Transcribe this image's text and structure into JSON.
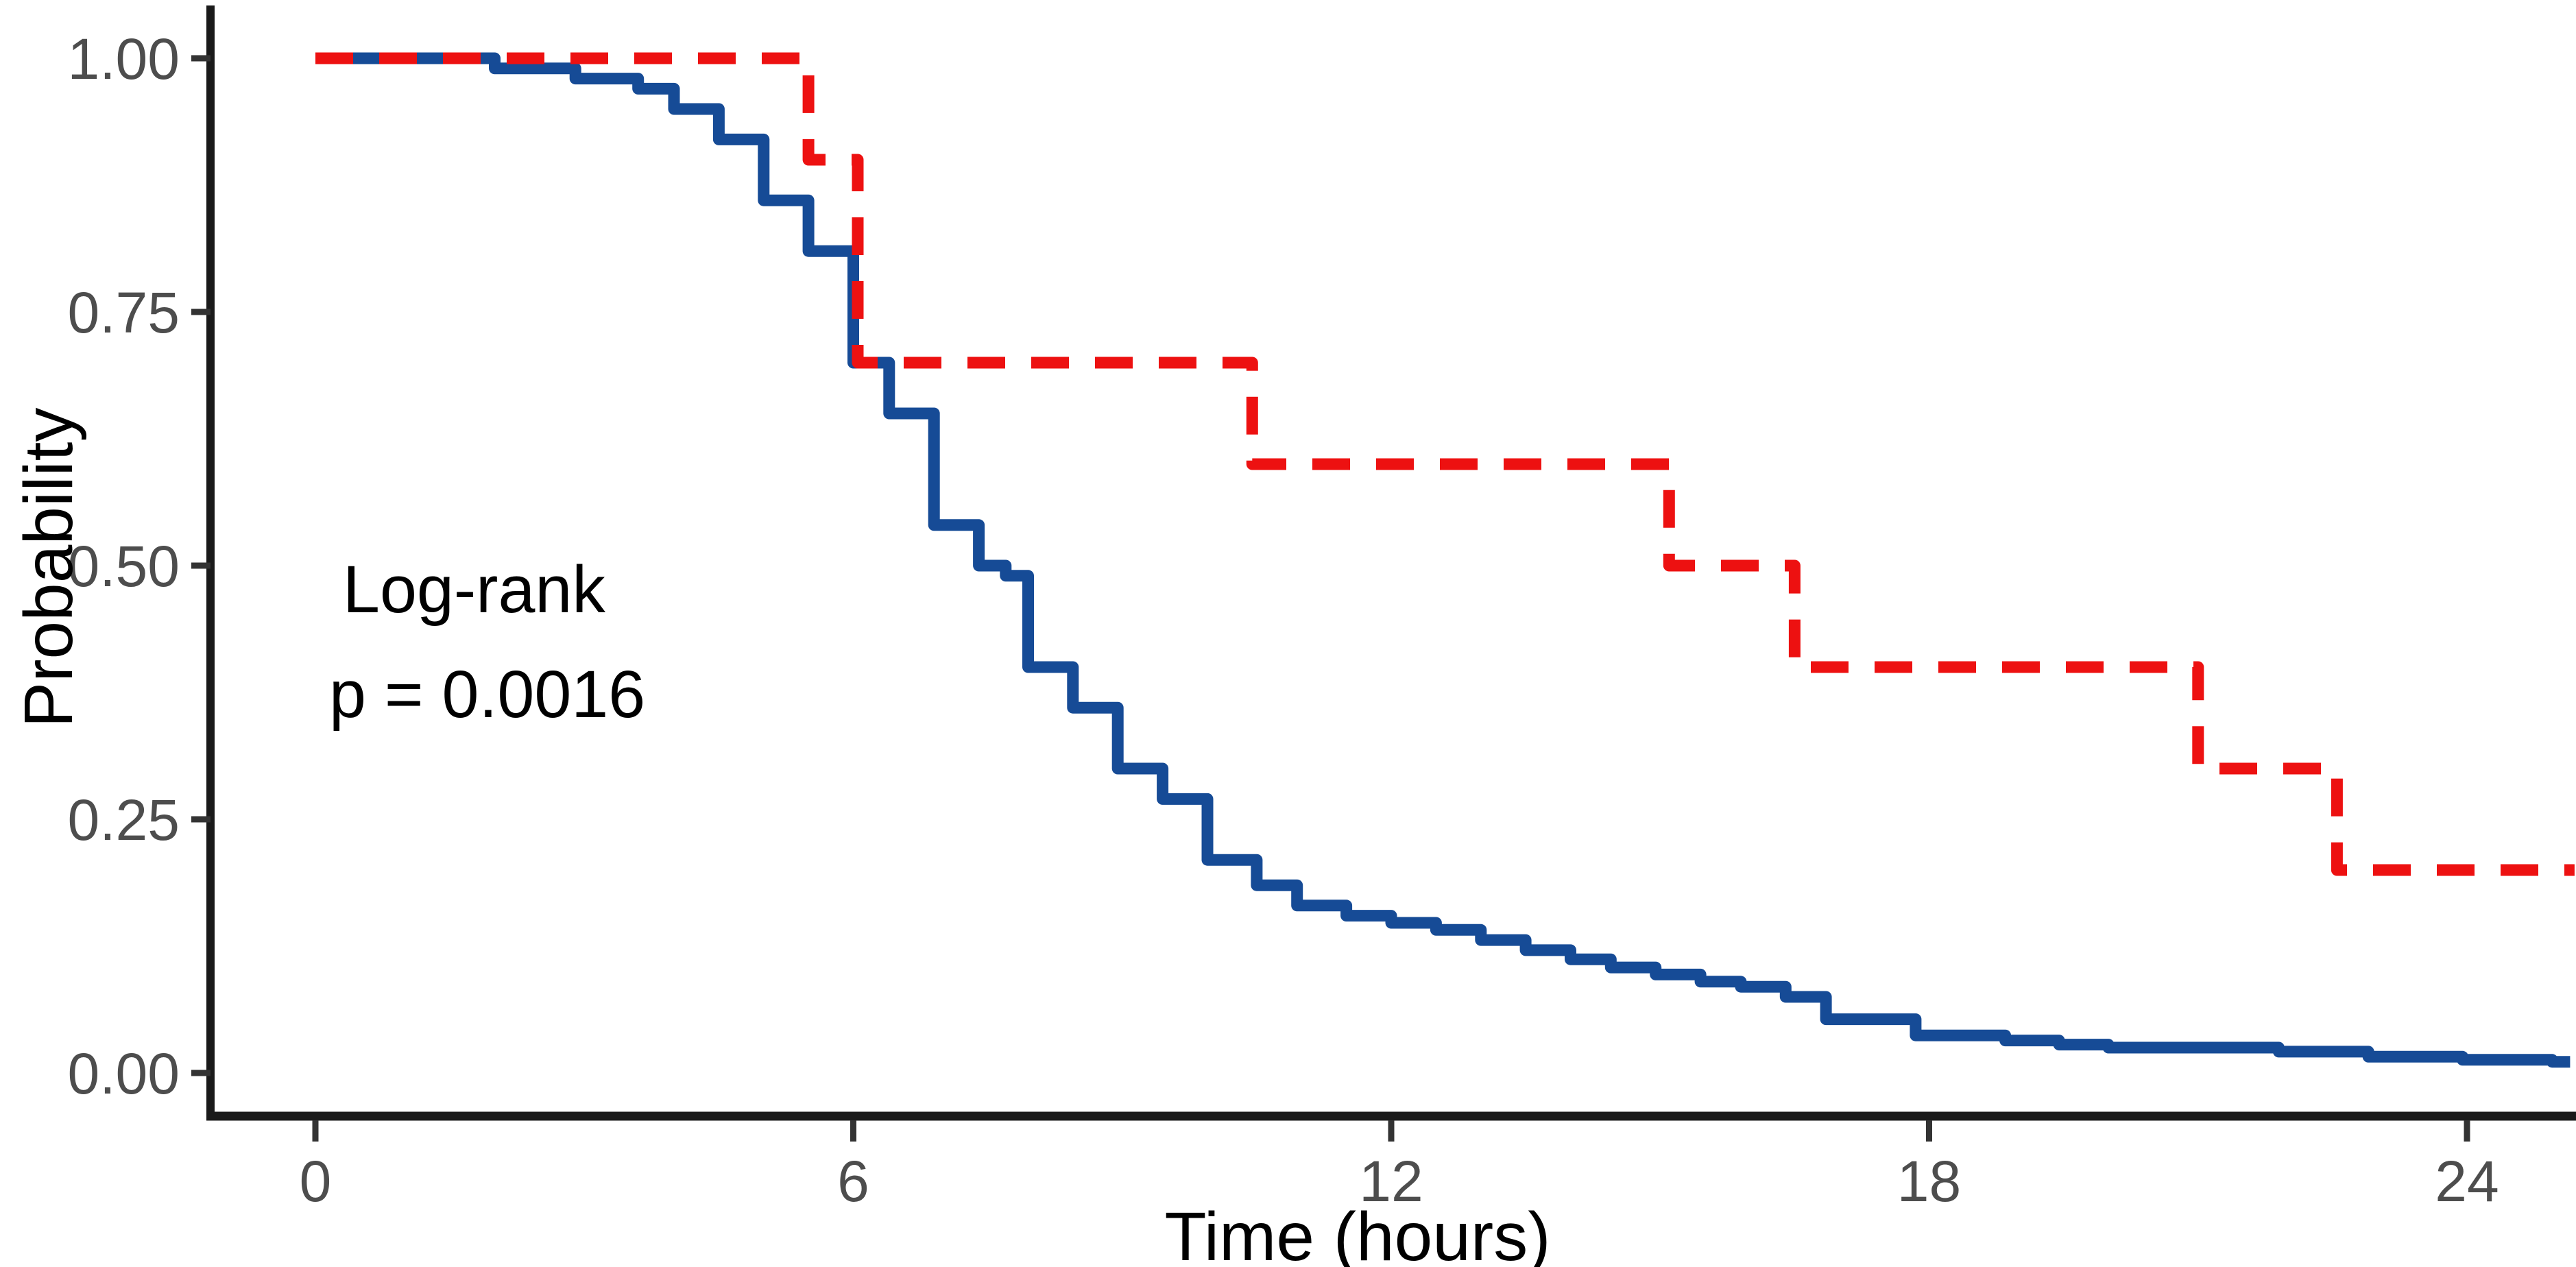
{
  "figure": {
    "background": "#ffffff",
    "kind": "Kaplan-Meier survival plot"
  },
  "chart_data": {
    "type": "line",
    "subtype": "kaplan-meier-step",
    "title": "",
    "xlabel": "Time (hours)",
    "ylabel": "Probability",
    "xlim": [
      0,
      25.2
    ],
    "ylim": [
      0,
      1.0
    ],
    "grid": false,
    "legend": "none",
    "x_ticks": [
      {
        "value": 0,
        "label": "0"
      },
      {
        "value": 6,
        "label": "6"
      },
      {
        "value": 12,
        "label": "12"
      },
      {
        "value": 18,
        "label": "18"
      },
      {
        "value": 24,
        "label": "24"
      }
    ],
    "y_ticks": [
      {
        "value": 0.0,
        "label": "0.00"
      },
      {
        "value": 0.25,
        "label": "0.25"
      },
      {
        "value": 0.5,
        "label": "0.50"
      },
      {
        "value": 0.75,
        "label": "0.75"
      },
      {
        "value": 1.0,
        "label": "1.00"
      }
    ],
    "annotation": {
      "line1": "Log-rank",
      "line2": "p = 0.0016",
      "color": "#000000"
    },
    "axis": {
      "spine_color": "#1a1a1a",
      "tick_color": "#333333",
      "tick_label_color": "#4d4d4d",
      "title_color": "#000000"
    },
    "series": [
      {
        "name": "group-blue-solid",
        "color": "#164b96",
        "line_style": "solid",
        "line_width": 17,
        "dash": null,
        "start": [
          0,
          1.0
        ],
        "steps": [
          [
            2.0,
            0.99
          ],
          [
            2.9,
            0.98
          ],
          [
            3.6,
            0.97
          ],
          [
            4.0,
            0.95
          ],
          [
            4.5,
            0.92
          ],
          [
            5.0,
            0.86
          ],
          [
            5.5,
            0.81
          ],
          [
            6.0,
            0.7
          ],
          [
            6.4,
            0.65
          ],
          [
            6.9,
            0.54
          ],
          [
            7.4,
            0.5
          ],
          [
            7.7,
            0.49
          ],
          [
            7.95,
            0.4
          ],
          [
            8.45,
            0.36
          ],
          [
            8.95,
            0.3
          ],
          [
            9.45,
            0.27
          ],
          [
            9.95,
            0.21
          ],
          [
            10.5,
            0.185
          ],
          [
            10.95,
            0.165
          ],
          [
            11.5,
            0.155
          ],
          [
            12.0,
            0.148
          ],
          [
            12.5,
            0.141
          ],
          [
            13.0,
            0.131
          ],
          [
            13.5,
            0.121
          ],
          [
            14.0,
            0.112
          ],
          [
            14.45,
            0.104
          ],
          [
            14.95,
            0.097
          ],
          [
            15.45,
            0.09
          ],
          [
            15.9,
            0.085
          ],
          [
            16.4,
            0.075
          ],
          [
            16.85,
            0.053
          ],
          [
            17.85,
            0.037
          ],
          [
            18.85,
            0.032
          ],
          [
            19.45,
            0.028
          ],
          [
            20.0,
            0.025
          ],
          [
            21.9,
            0.021
          ],
          [
            22.9,
            0.016
          ],
          [
            23.95,
            0.013
          ],
          [
            24.95,
            0.011
          ]
        ],
        "end_time": 25.15
      },
      {
        "name": "group-red-dashed",
        "color": "#ed1111",
        "line_style": "dashed",
        "line_width": 17,
        "dash": [
          55,
          38
        ],
        "start": [
          0,
          1.0
        ],
        "steps": [
          [
            5.5,
            0.9
          ],
          [
            6.05,
            0.7
          ],
          [
            10.45,
            0.6
          ],
          [
            15.1,
            0.5
          ],
          [
            16.5,
            0.4
          ],
          [
            21.0,
            0.3
          ],
          [
            22.55,
            0.2
          ]
        ],
        "end_time": 25.2
      }
    ]
  }
}
